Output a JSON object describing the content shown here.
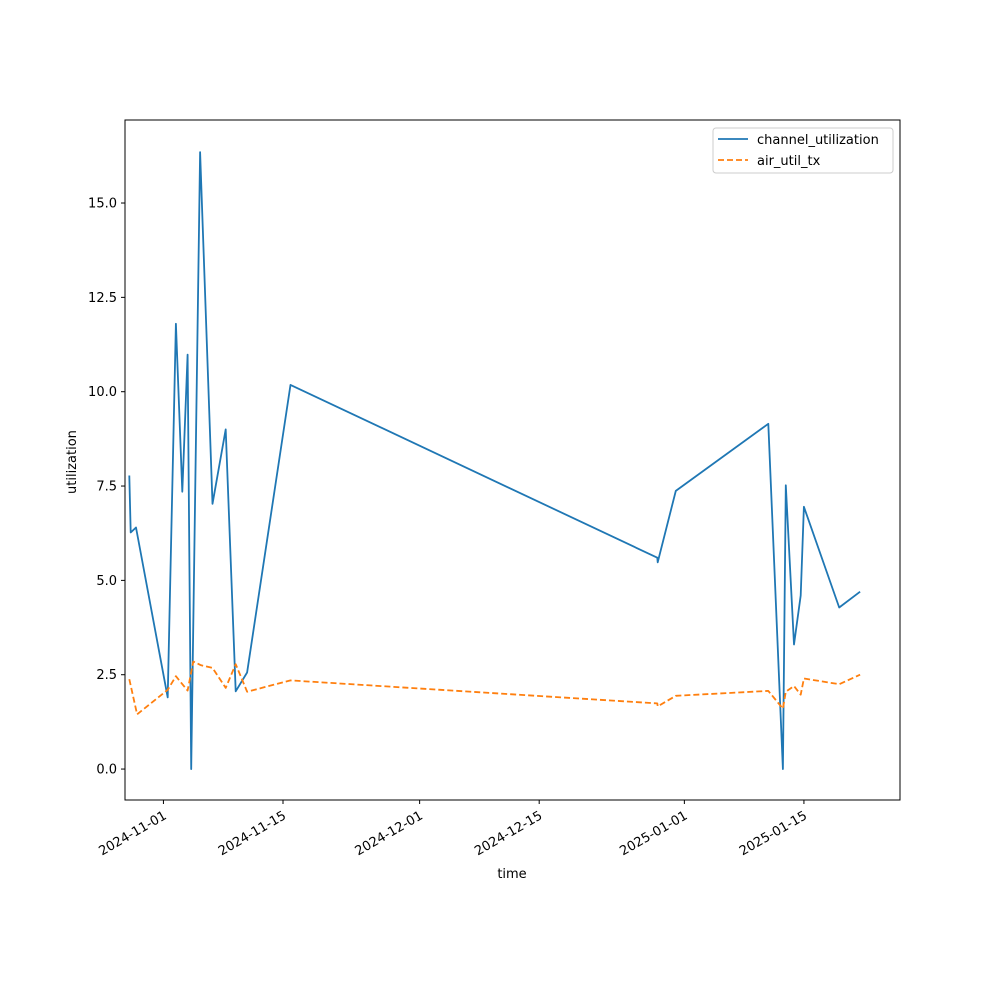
{
  "chart_data": {
    "type": "line",
    "title": "",
    "xlabel": "time",
    "ylabel": "utilization",
    "xlim": [
      "2024-10-27T12:00",
      "2025-01-26T06:00"
    ],
    "ylim": [
      -0.82,
      17.2
    ],
    "yticks": [
      0.0,
      2.5,
      5.0,
      7.5,
      10.0,
      12.5,
      15.0
    ],
    "ytick_labels": [
      "0.0",
      "2.5",
      "5.0",
      "7.5",
      "10.0",
      "12.5",
      "15.0"
    ],
    "xticks": [
      "2024-11-01",
      "2024-11-15",
      "2024-12-01",
      "2024-12-15",
      "2025-01-01",
      "2025-01-15"
    ],
    "xtick_labels": [
      "2024-11-01",
      "2024-11-15",
      "2024-12-01",
      "2024-12-15",
      "2025-01-01",
      "2025-01-15"
    ],
    "legend": "top-right",
    "grid": false,
    "series": [
      {
        "name": "channel_utilization",
        "color": "#1f77b4",
        "style": "solid",
        "points": [
          [
            "2024-10-28T00:00",
            7.78
          ],
          [
            "2024-10-28T04:00",
            6.27
          ],
          [
            "2024-10-28T19:00",
            6.4
          ],
          [
            "2024-11-01T12:00",
            1.9
          ],
          [
            "2024-11-02T11:00",
            11.8
          ],
          [
            "2024-11-03T05:00",
            7.35
          ],
          [
            "2024-11-03T20:00",
            10.98
          ],
          [
            "2024-11-04T06:00",
            0.0
          ],
          [
            "2024-11-05T07:00",
            16.35
          ],
          [
            "2024-11-06T18:00",
            7.03
          ],
          [
            "2024-11-08T07:00",
            9.0
          ],
          [
            "2024-11-09T11:00",
            2.06
          ],
          [
            "2024-11-10T19:00",
            2.56
          ],
          [
            "2024-11-15T21:00",
            10.18
          ],
          [
            "2024-12-28T20:00",
            5.6
          ],
          [
            "2024-12-28T21:00",
            5.48
          ],
          [
            "2024-12-31T00:00",
            7.37
          ],
          [
            "2025-01-10T20:00",
            9.15
          ],
          [
            "2025-01-12T13:00",
            0.0
          ],
          [
            "2025-01-12T21:00",
            7.52
          ],
          [
            "2025-01-13T20:00",
            3.3
          ],
          [
            "2025-01-14T15:00",
            4.6
          ],
          [
            "2025-01-15T00:00",
            6.95
          ],
          [
            "2025-01-19T03:00",
            4.28
          ],
          [
            "2025-01-21T14:00",
            4.7
          ]
        ]
      },
      {
        "name": "air_util_tx",
        "color": "#ff7f0e",
        "style": "dashed",
        "points": [
          [
            "2024-10-28T00:00",
            2.38
          ],
          [
            "2024-10-28T22:00",
            1.45
          ],
          [
            "2024-11-01T12:00",
            2.1
          ],
          [
            "2024-11-02T11:00",
            2.46
          ],
          [
            "2024-11-03T20:00",
            2.08
          ],
          [
            "2024-11-04T12:00",
            2.85
          ],
          [
            "2024-11-05T10:00",
            2.75
          ],
          [
            "2024-11-06T18:00",
            2.68
          ],
          [
            "2024-11-08T07:00",
            2.15
          ],
          [
            "2024-11-09T11:00",
            2.78
          ],
          [
            "2024-11-10T19:00",
            2.05
          ],
          [
            "2024-11-15T21:00",
            2.35
          ],
          [
            "2024-12-28T20:00",
            1.74
          ],
          [
            "2024-12-28T21:00",
            1.66
          ],
          [
            "2024-12-31T00:00",
            1.94
          ],
          [
            "2025-01-10T20:00",
            2.07
          ],
          [
            "2025-01-12T13:00",
            1.6
          ],
          [
            "2025-01-12T21:00",
            2.05
          ],
          [
            "2025-01-13T20:00",
            2.2
          ],
          [
            "2025-01-14T15:00",
            1.97
          ],
          [
            "2025-01-15T00:00",
            2.4
          ],
          [
            "2025-01-19T03:00",
            2.25
          ],
          [
            "2025-01-21T14:00",
            2.5
          ]
        ]
      }
    ]
  }
}
